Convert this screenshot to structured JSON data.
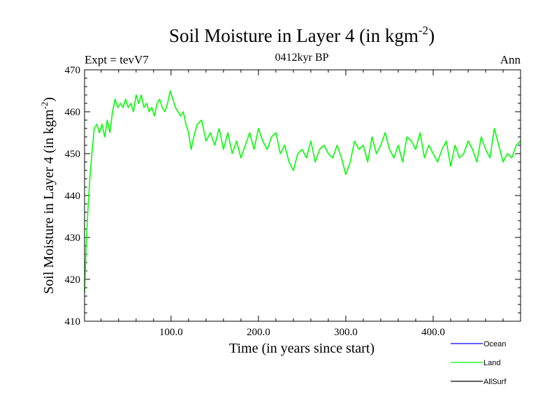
{
  "chart_data": {
    "type": "line",
    "title_main": "Soil Moisture in Layer 4 (in kgm",
    "title_sup": "-2",
    "title_close": ")",
    "subtitle_left": "Expt = tevV7",
    "subtitle_center": "0412kyr BP",
    "subtitle_right": "Ann",
    "xlabel": "Time (in years since start)",
    "ylabel_main": "Soil Moisture in Layer 4 (in kgm",
    "ylabel_sup": "-2",
    "ylabel_close": ")",
    "xlim": [
      1,
      500
    ],
    "ylim": [
      410,
      470
    ],
    "x_ticks": [
      100,
      200,
      300,
      400
    ],
    "x_tick_labels": [
      "100.0",
      "200.0",
      "300.0",
      "400.0"
    ],
    "y_ticks": [
      410,
      420,
      430,
      440,
      450,
      460,
      470
    ],
    "y_tick_labels": [
      "410",
      "420",
      "430",
      "440",
      "450",
      "460",
      "470"
    ],
    "legend": [
      {
        "name": "Ocean",
        "color": "#0000ff"
      },
      {
        "name": "Land",
        "color": "#00ff00"
      },
      {
        "name": "AllSurf",
        "color": "#000000"
      }
    ],
    "series": [
      {
        "name": "Land",
        "color": "#00ff00",
        "x": [
          1,
          3,
          5,
          7,
          9,
          12,
          15,
          18,
          21,
          24,
          27,
          30,
          33,
          36,
          39,
          42,
          45,
          48,
          51,
          54,
          57,
          60,
          63,
          66,
          69,
          72,
          75,
          78,
          81,
          84,
          87,
          90,
          93,
          96,
          99,
          102,
          105,
          108,
          111,
          114,
          117,
          120,
          123,
          126,
          130,
          135,
          140,
          145,
          150,
          155,
          160,
          165,
          170,
          175,
          180,
          185,
          190,
          195,
          200,
          205,
          210,
          215,
          220,
          225,
          230,
          235,
          240,
          245,
          250,
          255,
          260,
          265,
          270,
          275,
          280,
          285,
          290,
          295,
          300,
          305,
          310,
          315,
          320,
          325,
          330,
          335,
          340,
          345,
          350,
          355,
          360,
          365,
          370,
          375,
          380,
          385,
          390,
          395,
          400,
          405,
          410,
          415,
          420,
          425,
          430,
          435,
          440,
          445,
          450,
          455,
          460,
          465,
          470,
          475,
          480,
          485,
          490,
          495,
          500
        ],
        "values": [
          417,
          429,
          437,
          444,
          449,
          456,
          457,
          455,
          457,
          454,
          458,
          455,
          460,
          463,
          461,
          462,
          461,
          463,
          461,
          462,
          460,
          464,
          462,
          464,
          461,
          462,
          460,
          461,
          459,
          462,
          463,
          461,
          460,
          462,
          465,
          463,
          461,
          460,
          459,
          460,
          457,
          455,
          451,
          454,
          457,
          458,
          453,
          455,
          452,
          456,
          451,
          455,
          450,
          453,
          449,
          452,
          455,
          451,
          456,
          453,
          451,
          454,
          455,
          450,
          452,
          448,
          446,
          450,
          451,
          449,
          453,
          448,
          451,
          452,
          450,
          449,
          452,
          449,
          445,
          448,
          453,
          451,
          452,
          448,
          454,
          450,
          452,
          455,
          451,
          449,
          452,
          448,
          454,
          453,
          451,
          455,
          449,
          452,
          450,
          448,
          451,
          453,
          447,
          452,
          449,
          450,
          453,
          451,
          448,
          454,
          451,
          449,
          456,
          452,
          448,
          450,
          449,
          452,
          453
        ]
      }
    ]
  }
}
